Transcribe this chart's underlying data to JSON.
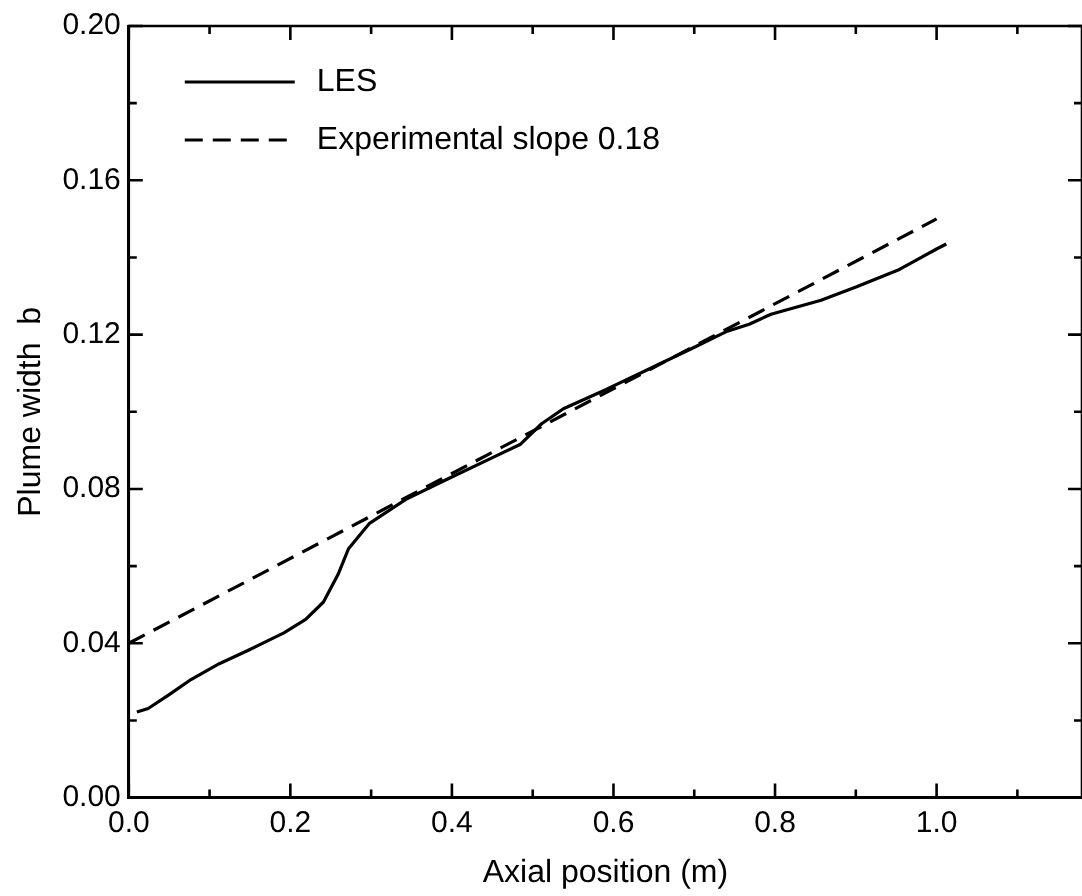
{
  "chart_data": {
    "type": "line",
    "xlabel": "Axial position (m)",
    "ylabel": "Plume width  b",
    "xlim": [
      0,
      1.18
    ],
    "ylim": [
      0,
      0.2
    ],
    "xticks": [
      {
        "value": 0,
        "label": "0.0"
      },
      {
        "value": 0.2,
        "label": "0.2"
      },
      {
        "value": 0.4,
        "label": "0.4"
      },
      {
        "value": 0.6,
        "label": "0.6"
      },
      {
        "value": 0.8,
        "label": "0.8"
      },
      {
        "value": 1,
        "label": "1.0"
      }
    ],
    "yticks": [
      {
        "value": 0,
        "label": "0.00"
      },
      {
        "value": 0.04,
        "label": "0.04"
      },
      {
        "value": 0.08,
        "label": "0.08"
      },
      {
        "value": 0.12,
        "label": "0.12"
      },
      {
        "value": 0.16,
        "label": "0.16"
      },
      {
        "value": 0.2,
        "label": "0.20"
      }
    ],
    "grid": false,
    "legend": "top left",
    "marker": "none",
    "series": [
      {
        "name": "LES",
        "color": "#000000",
        "line_style": "solid",
        "x": [
          0.01,
          0.024,
          0.05,
          0.077,
          0.112,
          0.148,
          0.192,
          0.219,
          0.241,
          0.259,
          0.272,
          0.298,
          0.343,
          0.396,
          0.449,
          0.485,
          0.511,
          0.538,
          0.591,
          0.644,
          0.697,
          0.741,
          0.768,
          0.795,
          0.857,
          0.901,
          0.954,
          1.0,
          1.012
        ],
        "values": [
          0.0222,
          0.0231,
          0.0267,
          0.0306,
          0.0347,
          0.0382,
          0.0427,
          0.0462,
          0.0507,
          0.0578,
          0.0645,
          0.0711,
          0.0773,
          0.0827,
          0.088,
          0.0916,
          0.0969,
          0.1008,
          0.1058,
          0.1111,
          0.1164,
          0.1209,
          0.1227,
          0.1253,
          0.1289,
          0.1324,
          0.1369,
          0.1422,
          0.1435
        ]
      },
      {
        "name": "Experimental slope 0.18",
        "color": "#000000",
        "line_style": "dashed",
        "x": [
          0,
          1.0
        ],
        "values": [
          0.04,
          0.15
        ]
      }
    ]
  }
}
